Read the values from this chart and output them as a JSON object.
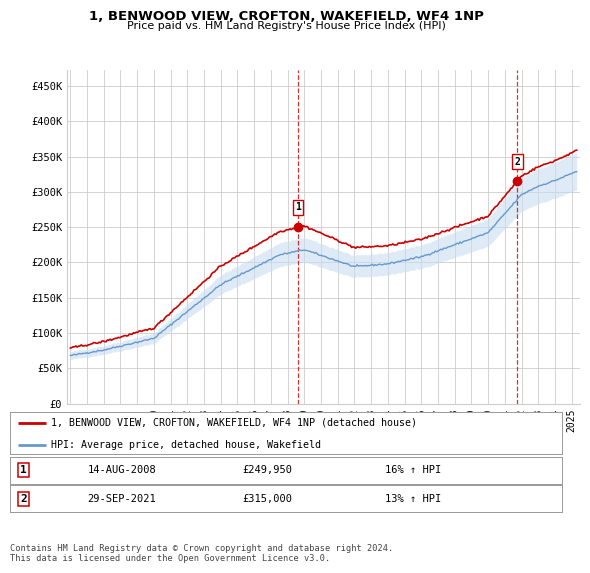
{
  "title": "1, BENWOOD VIEW, CROFTON, WAKEFIELD, WF4 1NP",
  "subtitle": "Price paid vs. HM Land Registry's House Price Index (HPI)",
  "ylabel_ticks": [
    "£0",
    "£50K",
    "£100K",
    "£150K",
    "£200K",
    "£250K",
    "£300K",
    "£350K",
    "£400K",
    "£450K"
  ],
  "ytick_values": [
    0,
    50000,
    100000,
    150000,
    200000,
    250000,
    300000,
    350000,
    400000,
    450000
  ],
  "ylim": [
    0,
    472000
  ],
  "xlim_start": 1994.8,
  "xlim_end": 2025.5,
  "legend_line1": "1, BENWOOD VIEW, CROFTON, WAKEFIELD, WF4 1NP (detached house)",
  "legend_line2": "HPI: Average price, detached house, Wakefield",
  "transaction1_date": "14-AUG-2008",
  "transaction1_price": "£249,950",
  "transaction1_hpi": "16% ↑ HPI",
  "transaction1_x": 2008.62,
  "transaction1_y": 249950,
  "transaction2_date": "29-SEP-2021",
  "transaction2_price": "£315,000",
  "transaction2_hpi": "13% ↑ HPI",
  "transaction2_x": 2021.75,
  "transaction2_y": 315000,
  "footer": "Contains HM Land Registry data © Crown copyright and database right 2024.\nThis data is licensed under the Open Government Licence v3.0.",
  "line_color_property": "#cc0000",
  "line_color_hpi": "#6699cc",
  "fill_color_hpi": "#c8ddf0",
  "background_color": "#ffffff",
  "grid_color": "#cccccc"
}
